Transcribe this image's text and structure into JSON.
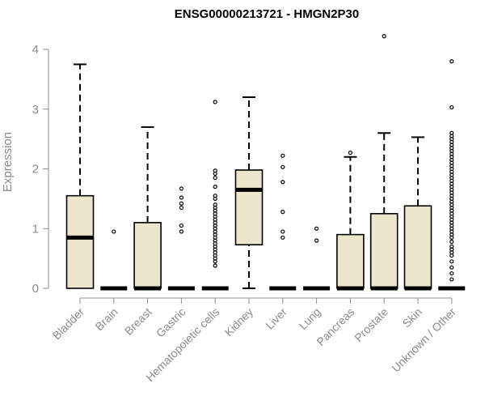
{
  "chart_data": {
    "type": "boxplot",
    "title": "ENSG00000213721 - HMGN2P30",
    "ylabel": "Expression",
    "xlabel": "",
    "ylim": [
      0,
      4.3
    ],
    "yticks": [
      0,
      1,
      2,
      3,
      4
    ],
    "grid": false,
    "box_fill": "#ede6cc",
    "box_stroke": "#000000",
    "categories": [
      "Bladder",
      "Brain",
      "Breast",
      "Gastric",
      "Hematopoietic cells",
      "Kidney",
      "Liver",
      "Lung",
      "Pancreas",
      "Prostate",
      "Skin",
      "Unknown / Other"
    ],
    "boxes": [
      {
        "category": "Bladder",
        "min": 0,
        "q1": 0,
        "median": 0.85,
        "q3": 1.55,
        "max": 3.75,
        "outliers": []
      },
      {
        "category": "Brain",
        "min": 0,
        "q1": 0,
        "median": 0,
        "q3": 0,
        "max": 0,
        "outliers": [
          0.95
        ]
      },
      {
        "category": "Breast",
        "min": 0,
        "q1": 0,
        "median": 0,
        "q3": 1.1,
        "max": 2.7,
        "outliers": []
      },
      {
        "category": "Gastric",
        "min": 0,
        "q1": 0,
        "median": 0,
        "q3": 0,
        "max": 0,
        "outliers": [
          0.95,
          1.05,
          1.35,
          1.42,
          1.52,
          1.67
        ]
      },
      {
        "category": "Hematopoietic cells",
        "min": 0,
        "q1": 0,
        "median": 0,
        "q3": 0,
        "max": 0,
        "outliers": [
          0.38,
          0.45,
          0.5,
          0.55,
          0.6,
          0.65,
          0.7,
          0.75,
          0.8,
          0.85,
          0.9,
          0.95,
          1.0,
          1.05,
          1.1,
          1.15,
          1.2,
          1.25,
          1.3,
          1.35,
          1.4,
          1.5,
          1.55,
          1.7,
          1.85,
          1.92,
          1.97,
          3.12
        ]
      },
      {
        "category": "Kidney",
        "min": 0,
        "q1": 0.73,
        "median": 1.65,
        "q3": 1.98,
        "max": 3.2,
        "outliers": []
      },
      {
        "category": "Liver",
        "min": 0,
        "q1": 0,
        "median": 0,
        "q3": 0,
        "max": 0,
        "outliers": [
          0.85,
          0.95,
          1.28,
          1.78,
          2.03,
          2.22
        ]
      },
      {
        "category": "Lung",
        "min": 0,
        "q1": 0,
        "median": 0,
        "q3": 0,
        "max": 0,
        "outliers": [
          0.8,
          1.0
        ]
      },
      {
        "category": "Pancreas",
        "min": 0,
        "q1": 0,
        "median": 0,
        "q3": 0.9,
        "max": 2.2,
        "outliers": [
          2.27
        ]
      },
      {
        "category": "Prostate",
        "min": 0,
        "q1": 0,
        "median": 0,
        "q3": 1.25,
        "max": 2.6,
        "outliers": [
          4.22
        ]
      },
      {
        "category": "Skin",
        "min": 0,
        "q1": 0,
        "median": 0,
        "q3": 1.38,
        "max": 2.53,
        "outliers": []
      },
      {
        "category": "Unknown / Other",
        "min": 0,
        "q1": 0,
        "median": 0,
        "q3": 0,
        "max": 0,
        "outliers": [
          0.15,
          0.25,
          0.35,
          0.45,
          0.55,
          0.6,
          0.65,
          0.7,
          0.78,
          0.85,
          0.9,
          0.95,
          1.0,
          1.05,
          1.1,
          1.15,
          1.2,
          1.25,
          1.3,
          1.35,
          1.4,
          1.45,
          1.5,
          1.55,
          1.6,
          1.65,
          1.7,
          1.75,
          1.8,
          1.85,
          1.9,
          1.95,
          2.0,
          2.05,
          2.1,
          2.15,
          2.2,
          2.25,
          2.3,
          2.35,
          2.4,
          2.45,
          2.5,
          2.55,
          2.6,
          3.03,
          3.8
        ]
      }
    ]
  }
}
